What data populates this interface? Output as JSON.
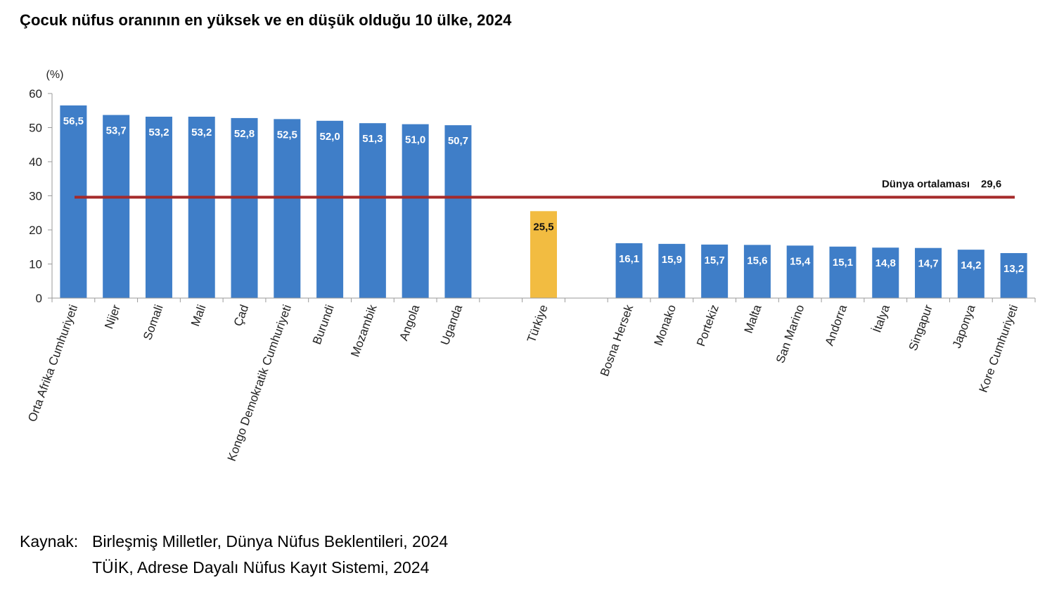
{
  "title": "Çocuk nüfus oranının en yüksek ve en düşük olduğu 10 ülke, 2024",
  "source": {
    "label": "Kaynak:",
    "lines": [
      "Birleşmiş Milletler, Dünya Nüfus Beklentileri, 2024",
      "TÜİK, Adrese Dayalı Nüfus Kayıt Sistemi, 2024"
    ]
  },
  "chart_data": {
    "type": "bar",
    "title": "Çocuk nüfus oranının en yüksek ve en düşük olduğu 10 ülke, 2024",
    "ylabel": "(%)",
    "ylim": [
      0,
      60
    ],
    "yticks": [
      0,
      10,
      20,
      30,
      40,
      50,
      60
    ],
    "categories": [
      "Orta Afrika Cumhuriyeti",
      "Nijer",
      "Somali",
      "Mali",
      "Çad",
      "Kongo Demokratik Cumhuriyeti",
      "Burundi",
      "Mozambik",
      "Angola",
      "Uganda",
      "",
      "Türkiye",
      "",
      "Bosna Hersek",
      "Monako",
      "Portekiz",
      "Malta",
      "San Marino",
      "Andorra",
      "İtalya",
      "Singapur",
      "Japonya",
      "Kore Cumhuriyeti"
    ],
    "values": [
      56.5,
      53.7,
      53.2,
      53.2,
      52.8,
      52.5,
      52.0,
      51.3,
      51.0,
      50.7,
      null,
      25.5,
      null,
      16.1,
      15.9,
      15.7,
      15.6,
      15.4,
      15.1,
      14.8,
      14.7,
      14.2,
      13.2
    ],
    "data_labels": [
      "56,5",
      "53,7",
      "53,2",
      "53,2",
      "52,8",
      "52,5",
      "52,0",
      "51,3",
      "51,0",
      "50,7",
      "",
      "25,5",
      "",
      "16,1",
      "15,9",
      "15,7",
      "15,6",
      "15,4",
      "15,1",
      "14,8",
      "14,7",
      "14,2",
      "13,2"
    ],
    "bar_colors": {
      "default": "#3f7ec8",
      "highlight": "#f2bc41",
      "highlight_category": "Türkiye"
    },
    "reference_line": {
      "label": "Dünya ortalaması",
      "value": 29.6,
      "value_label": "29,6",
      "color": "#a52a2a"
    },
    "grid": false,
    "legend": "none"
  }
}
